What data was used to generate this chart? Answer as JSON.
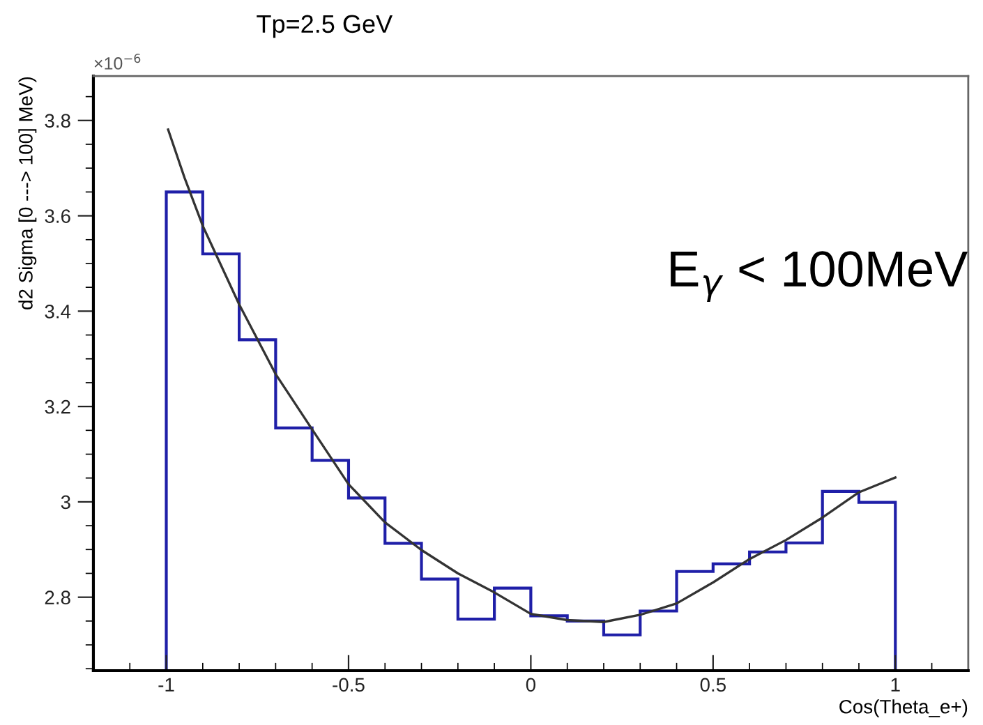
{
  "chart_data": {
    "type": "histogram",
    "title": "Tp=2.5 GeV",
    "xlabel": "Cos(Theta_e+)",
    "ylabel": "d2 Sigma [0 ---> 100] MeV)",
    "annotations": [
      "×10$^{−6}$",
      "E$_{γ}$ < 100MeV"
    ],
    "xlim": [
      -1.2,
      1.2
    ],
    "xticks": [
      -1,
      -0.5,
      0,
      0.5,
      1
    ],
    "ylim": [
      2.646,
      3.893
    ],
    "yticks": [
      2.8,
      3,
      3.2,
      3.4,
      3.6,
      3.8
    ],
    "grid": false,
    "series": [
      {
        "color": "#1f1fa8",
        "bins": [
          -1,
          -0.9,
          -0.8,
          -0.7,
          -0.6,
          -0.5,
          -0.4,
          -0.3,
          -0.2,
          -0.1,
          0,
          0.1,
          0.2,
          0.3,
          0.4,
          0.5,
          0.6,
          0.7,
          0.8,
          0.9,
          1
        ],
        "values": [
          3.65,
          3.52,
          3.34,
          3.155,
          3.087,
          3.008,
          2.913,
          2.838,
          2.754,
          2.819,
          2.761,
          2.75,
          2.721,
          2.771,
          2.854,
          2.87,
          2.895,
          2.914,
          3.022,
          2.999
        ]
      },
      {
        "type": "line",
        "color": "#333333",
        "x": [
          -0.995,
          -0.95,
          -0.9,
          -0.8,
          -0.7,
          -0.6,
          -0.5,
          -0.4,
          -0.3,
          -0.2,
          -0.1,
          0,
          0.1,
          0.2,
          0.3,
          0.4,
          0.5,
          0.6,
          0.7,
          0.8,
          0.9,
          1.0
        ],
        "values": [
          3.781,
          3.68,
          3.579,
          3.414,
          3.268,
          3.152,
          3.037,
          2.957,
          2.899,
          2.85,
          2.81,
          2.765,
          2.752,
          2.748,
          2.763,
          2.787,
          2.831,
          2.88,
          2.92,
          2.967,
          3.02,
          3.051
        ]
      }
    ]
  }
}
